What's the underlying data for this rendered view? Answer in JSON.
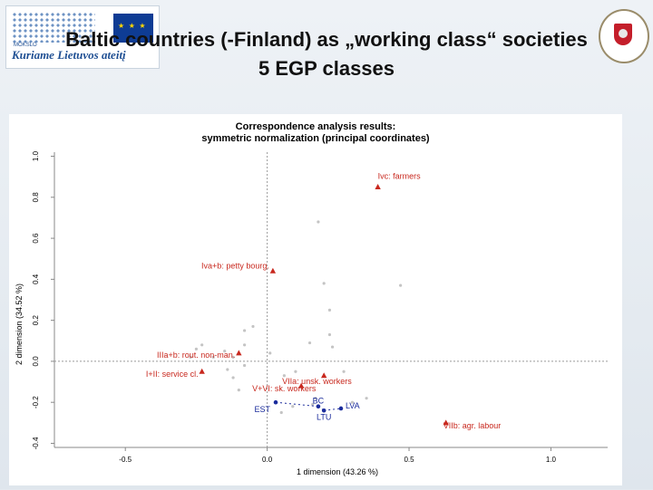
{
  "slide": {
    "title_line1": "Baltic countries (-Finland) as „working class“ societies",
    "title_line2": "5 EGP classes",
    "logo_left_slogan": "Kuriame Lietuvos ateitį",
    "logo_left_small": "MOKSLO"
  },
  "chart_data": {
    "type": "scatter",
    "title": "Correspondence analysis results:",
    "subtitle": "symmetric normalization (principal coordinates)",
    "xlabel": "1 dimension (43.26 %)",
    "ylabel": "2 dimension (34.52 %)",
    "xlim": [
      -0.75,
      1.2
    ],
    "ylim": [
      -0.42,
      1.02
    ],
    "xticks": [
      -0.5,
      0.0,
      0.5,
      1.0
    ],
    "xtick_labels": [
      "-0.5",
      "0.0",
      "0.5",
      "1.0"
    ],
    "yticks": [
      -0.4,
      -0.2,
      0.0,
      0.2,
      0.4,
      0.6,
      0.8,
      1.0
    ],
    "ytick_labels": [
      "-0.4",
      "-0.2",
      "0.0",
      "0.2",
      "0.4",
      "0.6",
      "0.8",
      "1.0"
    ],
    "reference_lines": {
      "x": 0.0,
      "y": 0.0
    },
    "colors": {
      "classes": "#c8281e",
      "countries": "#1b2c9c",
      "faint": "#c4c4c4"
    },
    "classes": [
      {
        "label": "Ivc: farmers",
        "x": 0.39,
        "y": 0.85
      },
      {
        "label": "Iva+b: petty bourg.",
        "x": 0.02,
        "y": 0.44
      },
      {
        "label": "IIIa+b: rout. non-man.",
        "x": -0.1,
        "y": 0.04
      },
      {
        "label": "I+II: service cl.",
        "x": -0.23,
        "y": -0.05
      },
      {
        "label": "VIIa: unsk. workers",
        "x": 0.2,
        "y": -0.07
      },
      {
        "label": "V+VI: sk. workers",
        "x": 0.12,
        "y": -0.12
      },
      {
        "label": "VIIb: agr. labour",
        "x": 0.63,
        "y": -0.3
      }
    ],
    "countries": [
      {
        "label": "EST",
        "x": 0.03,
        "y": -0.2
      },
      {
        "label": "BC",
        "x": 0.18,
        "y": -0.22
      },
      {
        "label": "LTU",
        "x": 0.2,
        "y": -0.24
      },
      {
        "label": "LVA",
        "x": 0.26,
        "y": -0.23
      }
    ],
    "faint_points": [
      [
        0.18,
        0.68
      ],
      [
        0.2,
        0.38
      ],
      [
        0.22,
        0.25
      ],
      [
        0.47,
        0.37
      ],
      [
        -0.05,
        0.17
      ],
      [
        -0.08,
        0.15
      ],
      [
        0.22,
        0.13
      ],
      [
        -0.08,
        0.08
      ],
      [
        -0.23,
        0.08
      ],
      [
        -0.25,
        0.06
      ],
      [
        -0.15,
        0.05
      ],
      [
        0.15,
        0.09
      ],
      [
        0.01,
        0.04
      ],
      [
        -0.12,
        0.02
      ],
      [
        -0.19,
        0.02
      ],
      [
        0.23,
        0.07
      ],
      [
        -0.27,
        0.02
      ],
      [
        0.1,
        -0.05
      ],
      [
        0.06,
        -0.07
      ],
      [
        -0.08,
        -0.02
      ],
      [
        -0.14,
        -0.04
      ],
      [
        -0.12,
        -0.08
      ],
      [
        0.27,
        -0.05
      ],
      [
        -0.1,
        -0.14
      ],
      [
        0.05,
        -0.25
      ],
      [
        0.17,
        -0.18
      ],
      [
        0.09,
        -0.22
      ],
      [
        0.16,
        -0.21
      ],
      [
        0.3,
        -0.2
      ],
      [
        0.35,
        -0.18
      ]
    ]
  }
}
